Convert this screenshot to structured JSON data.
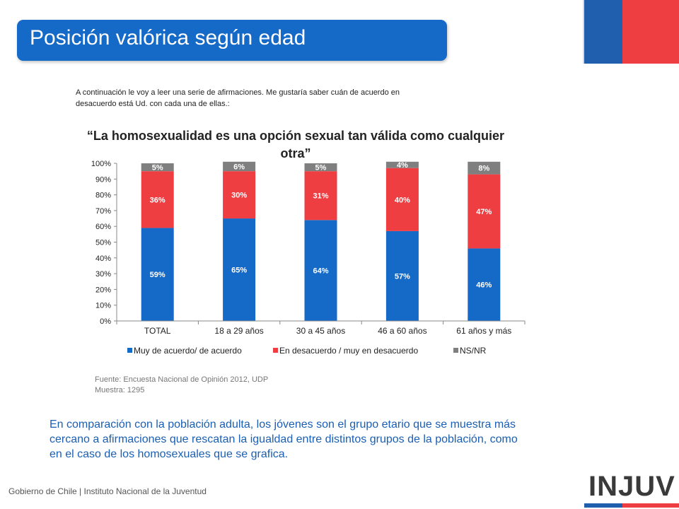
{
  "slide_title": "Posición valórica según edad",
  "intro_lines": [
    "A continuación le voy a leer una serie de afirmaciones. Me gustaría saber cuán de acuerdo  en",
    "desacuerdo está Ud.  con cada una  de ellas.:"
  ],
  "chart_data": {
    "type": "bar",
    "stacked": true,
    "title_lines": [
      "“La homosexualidad es una opción sexual tan válida como cualquier",
      "otra”"
    ],
    "categories": [
      "TOTAL",
      "18 a 29 años",
      "30 a 45 años",
      "46 a 60 años",
      "61 años y más"
    ],
    "series": [
      {
        "name": "Muy de acuerdo/ de acuerdo",
        "color": "#1569c7",
        "values": [
          59,
          65,
          64,
          57,
          46
        ]
      },
      {
        "name": "En desacuerdo / muy en desacuerdo",
        "color": "#ef3e42",
        "values": [
          36,
          30,
          31,
          40,
          47
        ]
      },
      {
        "name": "NS/NR",
        "color": "#7f7f7f",
        "values": [
          5,
          6,
          5,
          4,
          8
        ]
      }
    ],
    "value_suffix": "%",
    "y_ticks": [
      "0%",
      "10%",
      "20%",
      "30%",
      "40%",
      "50%",
      "60%",
      "70%",
      "80%",
      "90%",
      "100%"
    ],
    "ylim": [
      0,
      100
    ],
    "legend_position": "bottom"
  },
  "source_lines": [
    "Fuente: Encuesta Nacional de Opinión 2012, UDP",
    "Muestra: 1295"
  ],
  "summary_lines": [
    "En comparación con la población adulta, los jóvenes son el grupo etario que se muestra más",
    "cercano a afirmaciones que rescatan la igualdad entre distintos grupos de la población, como",
    "en el caso de los homosexuales que se grafica."
  ],
  "footer": "Gobierno de Chile | Instituto Nacional de la Juventud",
  "logo_text": "INJUV"
}
